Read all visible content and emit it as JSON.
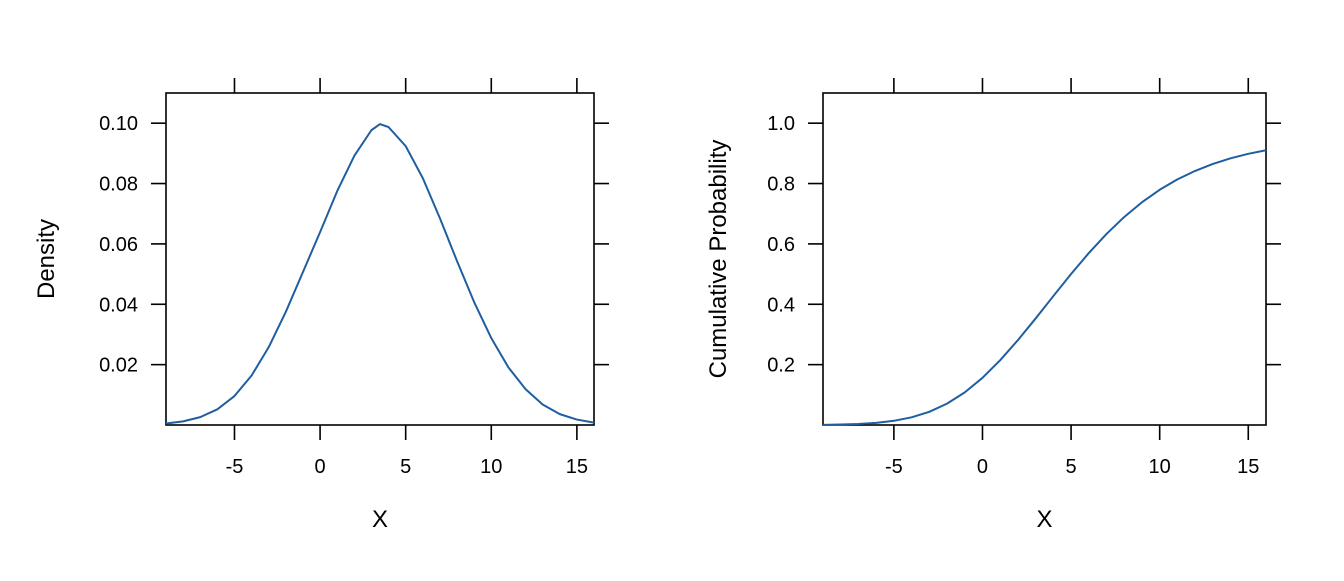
{
  "colors": {
    "line": "#1f5fa0",
    "axis": "#000000",
    "background": "#ffffff"
  },
  "chart_data": [
    {
      "type": "line",
      "title": "",
      "xlabel": "X",
      "ylabel": "Density",
      "xlim": [
        -9,
        16
      ],
      "ylim": [
        0,
        0.11
      ],
      "x_ticks": [
        -5,
        0,
        5,
        10,
        15
      ],
      "x_tick_labels": [
        "-5",
        "0",
        "5",
        "10",
        "15"
      ],
      "y_ticks": [
        0.02,
        0.04,
        0.06,
        0.08,
        0.1
      ],
      "y_tick_labels": [
        "0.02",
        "0.04",
        "0.06",
        "0.08",
        "0.10"
      ],
      "grid": false,
      "series": [
        {
          "x": [
            -9,
            -8,
            -7,
            -6,
            -5,
            -4,
            -3,
            -2,
            -1,
            0,
            1,
            2,
            3,
            3.5,
            4,
            5,
            6,
            7,
            8,
            9,
            10,
            11,
            12,
            13,
            14,
            15,
            16
          ],
          "y": [
            0.0005,
            0.0012,
            0.0026,
            0.0052,
            0.0096,
            0.0164,
            0.0258,
            0.0375,
            0.0507,
            0.0639,
            0.0775,
            0.0892,
            0.0977,
            0.0997,
            0.0987,
            0.0924,
            0.0818,
            0.0685,
            0.0543,
            0.0407,
            0.0288,
            0.0191,
            0.0119,
            0.0068,
            0.0036,
            0.0018,
            0.0008
          ]
        }
      ]
    },
    {
      "type": "line",
      "title": "",
      "xlabel": "X",
      "ylabel": "Cumulative Probability",
      "xlim": [
        -9,
        16
      ],
      "ylim": [
        0,
        1.1
      ],
      "x_ticks": [
        -5,
        0,
        5,
        10,
        15
      ],
      "x_tick_labels": [
        "-5",
        "0",
        "5",
        "10",
        "15"
      ],
      "y_ticks": [
        0.2,
        0.4,
        0.6,
        0.8,
        1.0
      ],
      "y_tick_labels": [
        "0.2",
        "0.4",
        "0.6",
        "0.8",
        "1.0"
      ],
      "grid": false,
      "series": [
        {
          "x": [
            -9,
            -8,
            -7,
            -6,
            -5,
            -4,
            -3,
            -2,
            -1,
            0,
            1,
            2,
            3,
            4,
            5,
            6,
            7,
            8,
            9,
            10,
            11,
            12,
            13,
            14,
            15,
            16
          ],
          "y": [
            0.0006,
            0.0015,
            0.0033,
            0.0071,
            0.0139,
            0.0254,
            0.0438,
            0.0708,
            0.1081,
            0.1563,
            0.2148,
            0.2813,
            0.3531,
            0.4272,
            0.5004,
            0.5697,
            0.6331,
            0.6893,
            0.7381,
            0.7794,
            0.8137,
            0.8419,
            0.8649,
            0.8836,
            0.8985,
            0.9102
          ]
        }
      ]
    }
  ]
}
